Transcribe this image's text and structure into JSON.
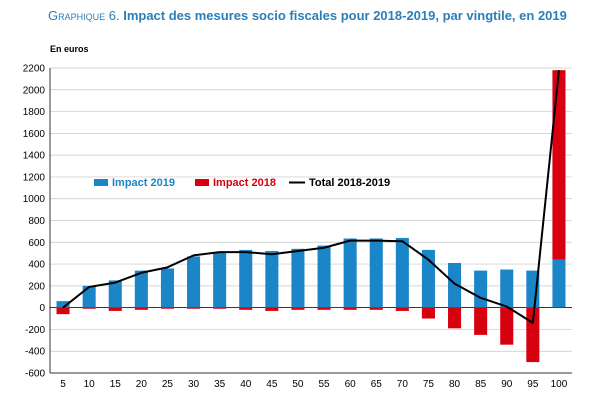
{
  "chart_data": {
    "type": "bar",
    "title_prefix": "Graphique 6.",
    "title": "Impact des mesures socio fiscales pour 2018-2019, par vingtile, en 2019",
    "unit": "En euros",
    "categories": [
      "5",
      "10",
      "15",
      "20",
      "25",
      "30",
      "35",
      "40",
      "45",
      "50",
      "55",
      "60",
      "65",
      "70",
      "75",
      "80",
      "85",
      "90",
      "95",
      "100"
    ],
    "series": [
      {
        "name": "Impact 2019",
        "type": "bar",
        "color": "#1a86c8",
        "values": [
          60,
          200,
          250,
          340,
          360,
          470,
          510,
          530,
          520,
          540,
          570,
          635,
          635,
          640,
          530,
          410,
          340,
          350,
          340,
          440
        ]
      },
      {
        "name": "Impact 2018",
        "type": "bar",
        "color": "#d7000f",
        "values": [
          -60,
          -10,
          -30,
          -20,
          -10,
          -10,
          -10,
          -20,
          -30,
          -20,
          -20,
          -20,
          -20,
          -30,
          -100,
          -190,
          -250,
          -340,
          -500,
          1740
        ]
      },
      {
        "name": "Total 2018-2019",
        "type": "line",
        "color": "#000000",
        "values": [
          0,
          190,
          230,
          320,
          370,
          480,
          510,
          510,
          490,
          520,
          550,
          615,
          615,
          610,
          440,
          220,
          90,
          10,
          -140,
          2180
        ]
      }
    ],
    "ylim": [
      -600,
      2200
    ],
    "yticks": [
      -600,
      -400,
      -200,
      0,
      200,
      400,
      600,
      800,
      1000,
      1200,
      1400,
      1600,
      1800,
      2000,
      2200
    ],
    "grid": true,
    "legend": "center-left"
  }
}
